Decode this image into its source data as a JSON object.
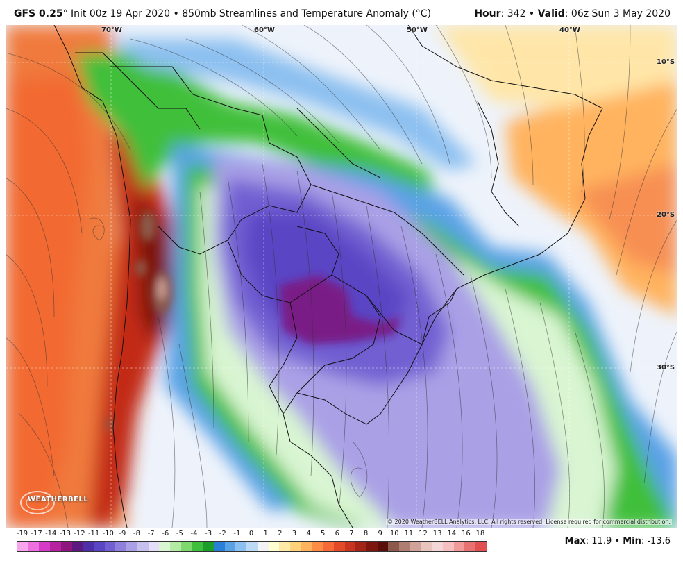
{
  "header": {
    "model": "GFS 0.25",
    "degree_mark": "°",
    "init": "Init 00z 19 Apr 2020",
    "separator": "•",
    "product": "850mb Streamlines and Temperature Anomaly (°C)",
    "hour_label": "Hour",
    "hour_value": "342",
    "valid_label": "Valid",
    "valid_value": "06z Sun 3 May 2020"
  },
  "map": {
    "longitude_labels": [
      "70°W",
      "60°W",
      "50°W",
      "40°W"
    ],
    "latitude_labels": [
      "10°S",
      "20°S",
      "30°S"
    ],
    "copyright": "© 2020 WeatherBELL Analytics, LLC. All rights reserved. License required for commercial distribution.",
    "logo_text": "WEATHERBELL"
  },
  "legend": {
    "ticks": [
      "-19",
      "-17",
      "-14",
      "-13",
      "-12",
      "-11",
      "-10",
      "-9",
      "-8",
      "-7",
      "-6",
      "-5",
      "-4",
      "-3",
      "-2",
      "-1",
      "0",
      "1",
      "2",
      "3",
      "4",
      "5",
      "6",
      "7",
      "8",
      "9",
      "10",
      "11",
      "12",
      "13",
      "14",
      "16",
      "18"
    ],
    "colors": [
      "#f7a6ee",
      "#ee6fe0",
      "#d63bc8",
      "#b5219e",
      "#8f167e",
      "#5c1a80",
      "#4f2fa8",
      "#5a45c4",
      "#7260d2",
      "#8e80dc",
      "#aaa0e6",
      "#c7c0ee",
      "#e3ddf7",
      "#d9f5d2",
      "#b3eaa4",
      "#7fd86d",
      "#3fbf3b",
      "#1b9f2a",
      "#2a7fd6",
      "#5aa1e6",
      "#8cc0f0",
      "#bcd9f6",
      "#f3f3f6",
      "#ffffd0",
      "#ffe9a6",
      "#ffd27a",
      "#ffb35e",
      "#ff8c45",
      "#f56a36",
      "#e24a2a",
      "#c73420",
      "#a52418",
      "#7c160e",
      "#5a0f0a",
      "#8c5a4a",
      "#b07e70",
      "#cfa29a",
      "#e8c4bf",
      "#f3d6d6",
      "#f7c0c0",
      "#f29a9a",
      "#e87272",
      "#e05050"
    ],
    "max_label": "Max",
    "max_value": "11.9",
    "min_label": "Min",
    "min_value": "-13.6"
  }
}
